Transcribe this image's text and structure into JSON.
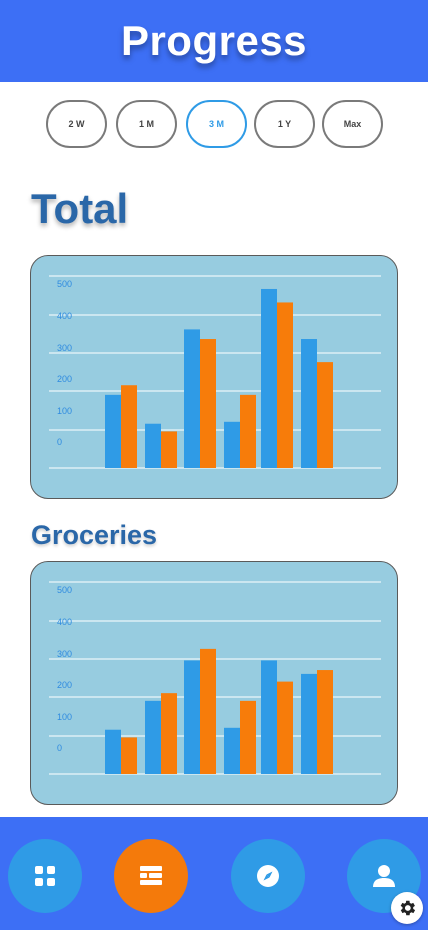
{
  "header": {
    "title": "Progress"
  },
  "ranges": [
    {
      "label": "2 W",
      "active": false
    },
    {
      "label": "1 M",
      "active": false
    },
    {
      "label": "3 M",
      "active": true
    },
    {
      "label": "1 Y",
      "active": false
    },
    {
      "label": "Max",
      "active": false
    }
  ],
  "sections": {
    "total_title": "Total",
    "groceries_title": "Groceries"
  },
  "colors": {
    "header": "#3d6ff5",
    "series_a": "#2f9be6",
    "series_b": "#f77c0a",
    "card": "#97cce0",
    "accent": "#f47a0b"
  },
  "chart_data": [
    {
      "type": "bar",
      "ticks": [
        0,
        100,
        200,
        300,
        400,
        500
      ],
      "grid": true,
      "series": [
        {
          "values": [
            190,
            115,
            360,
            120,
            465,
            335
          ],
          "color": "#2f9be6"
        },
        {
          "values": [
            215,
            95,
            335,
            190,
            430,
            275
          ],
          "color": "#f77c0a"
        }
      ]
    },
    {
      "type": "bar",
      "ticks": [
        0,
        100,
        200,
        300,
        400,
        500
      ],
      "grid": true,
      "series": [
        {
          "values": [
            115,
            190,
            295,
            120,
            295,
            260
          ],
          "color": "#2f9be6"
        },
        {
          "values": [
            95,
            210,
            325,
            190,
            240,
            270
          ],
          "color": "#f77c0a"
        }
      ]
    }
  ],
  "nav": [
    {
      "icon": "grid-icon",
      "active": false
    },
    {
      "icon": "list-icon",
      "active": true
    },
    {
      "icon": "compass-icon",
      "active": false
    },
    {
      "icon": "user-icon",
      "active": false
    }
  ],
  "settings": {
    "icon": "gear-icon"
  }
}
